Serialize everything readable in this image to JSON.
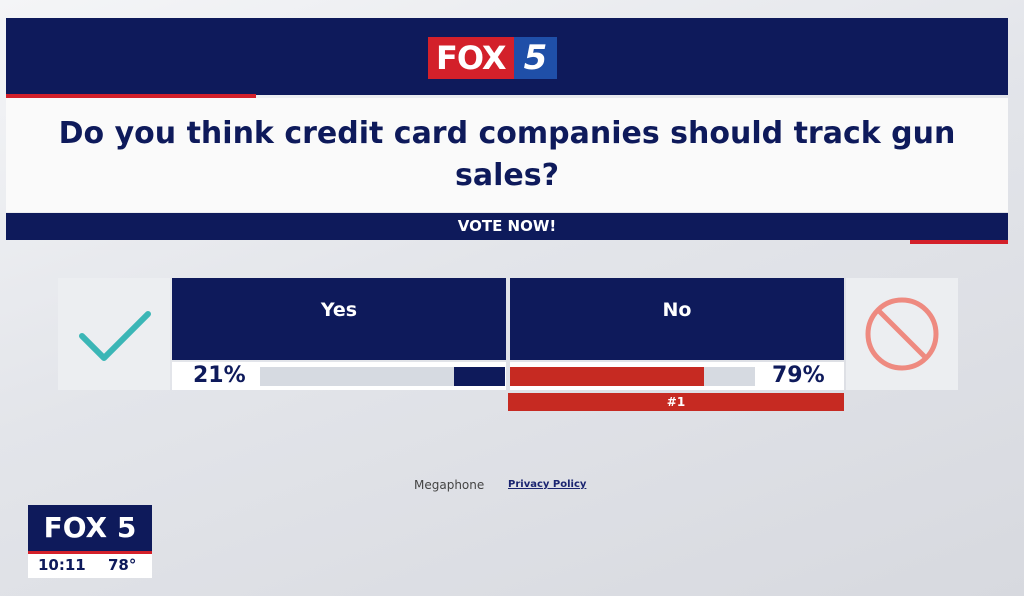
{
  "header": {
    "logo_word": "FOX",
    "logo_number": "5"
  },
  "question": "Do you think credit card companies should track gun sales?",
  "vote_banner": "VOTE NOW!",
  "options": [
    {
      "label": "Yes",
      "value": 21,
      "value_label": "21%"
    },
    {
      "label": "No",
      "value": 79,
      "value_label": "79%",
      "rank": "#1"
    }
  ],
  "footer": {
    "provider": "Megaphone",
    "privacy": "Privacy Policy"
  },
  "bug": {
    "logo": "FOX 5",
    "time": "10:11",
    "temperature": "78°"
  }
}
